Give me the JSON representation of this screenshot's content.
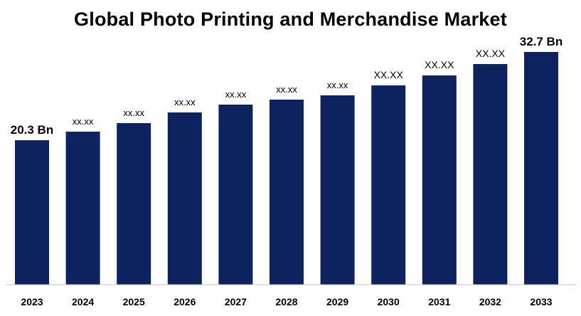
{
  "chart_data": {
    "type": "bar",
    "title": "Global Photo Printing and Merchandise Market",
    "xlabel": "",
    "ylabel": "",
    "ylim": [
      0,
      36
    ],
    "grid": false,
    "categories": [
      "2023",
      "2024",
      "2025",
      "2026",
      "2027",
      "2028",
      "2029",
      "2030",
      "2031",
      "2032",
      "2033"
    ],
    "values": [
      20.3,
      21.5,
      22.7,
      24.2,
      25.3,
      26.0,
      26.6,
      28.0,
      29.4,
      31.0,
      32.7
    ],
    "data_labels": [
      "20.3 Bn",
      "xx.xx",
      "xx.xx",
      "xx.xx",
      "xx.xx",
      "xx.xx",
      "xx.xx",
      "XX.XX",
      "XX.XX",
      "XX.XX",
      "32.7 Bn"
    ],
    "colors": {
      "bar": "#0c2360"
    }
  }
}
